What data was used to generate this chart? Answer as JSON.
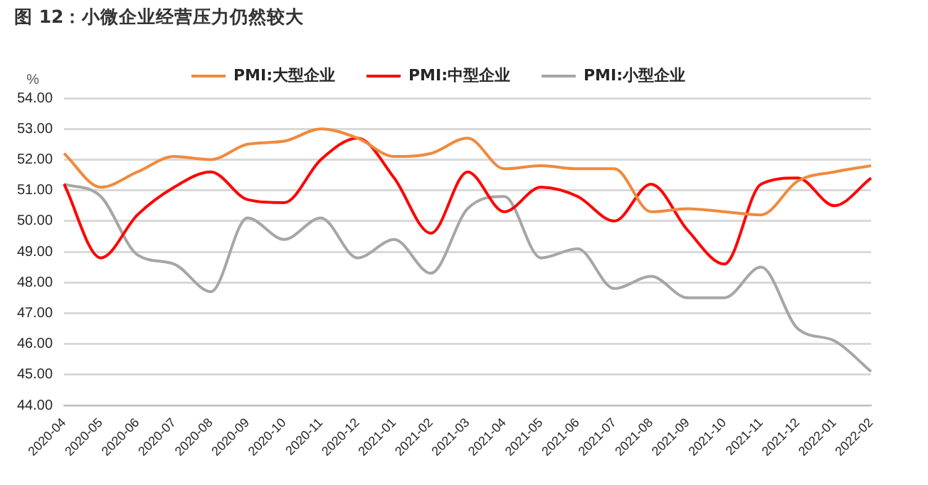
{
  "chart_data": {
    "type": "line",
    "title": "图 12：小微企业经营压力仍然较大",
    "ylabel": "%",
    "categories": [
      "2020-04",
      "2020-05",
      "2020-06",
      "2020-07",
      "2020-08",
      "2020-09",
      "2020-10",
      "2020-11",
      "2020-12",
      "2021-01",
      "2021-02",
      "2021-03",
      "2021-04",
      "2021-05",
      "2021-06",
      "2021-07",
      "2021-08",
      "2021-09",
      "2021-10",
      "2021-11",
      "2021-12",
      "2022-01",
      "2022-02"
    ],
    "series": [
      {
        "name": "PMI:大型企业",
        "color": "#f08a3c",
        "values": [
          52.2,
          51.1,
          51.6,
          52.1,
          52.0,
          52.5,
          52.6,
          53.0,
          52.7,
          52.1,
          52.2,
          52.7,
          51.7,
          51.8,
          51.7,
          51.7,
          50.3,
          50.4,
          50.3,
          50.2,
          51.3,
          51.6,
          51.8
        ]
      },
      {
        "name": "PMI:中型企业",
        "color": "#ff0000",
        "values": [
          51.2,
          48.8,
          50.2,
          51.1,
          51.6,
          50.7,
          50.6,
          52.0,
          52.7,
          51.4,
          49.6,
          51.6,
          50.3,
          51.1,
          50.8,
          50.0,
          51.2,
          49.7,
          48.6,
          51.2,
          51.4,
          50.5,
          51.4
        ]
      },
      {
        "name": "PMI:小型企业",
        "color": "#a6a6a6",
        "values": [
          51.2,
          50.8,
          48.9,
          48.6,
          47.7,
          50.1,
          49.4,
          50.1,
          48.8,
          49.4,
          48.3,
          50.4,
          50.8,
          48.8,
          49.1,
          47.8,
          48.2,
          47.5,
          47.5,
          48.5,
          46.5,
          46.1,
          45.1
        ]
      }
    ],
    "ylim": [
      44,
      54
    ],
    "yticks": [
      {
        "value": 44,
        "label": "44.00"
      },
      {
        "value": 45,
        "label": "45.00"
      },
      {
        "value": 46,
        "label": "46.00"
      },
      {
        "value": 47,
        "label": "47.00"
      },
      {
        "value": 48,
        "label": "48.00"
      },
      {
        "value": 49,
        "label": "49.00"
      },
      {
        "value": 50,
        "label": "50.00"
      },
      {
        "value": 51,
        "label": "51.00"
      },
      {
        "value": 52,
        "label": "52.00"
      },
      {
        "value": 53,
        "label": "53.00"
      },
      {
        "value": 54,
        "label": "54.00"
      }
    ],
    "grid": "y",
    "legend": "top",
    "marker": "none",
    "line_style": "solid"
  }
}
